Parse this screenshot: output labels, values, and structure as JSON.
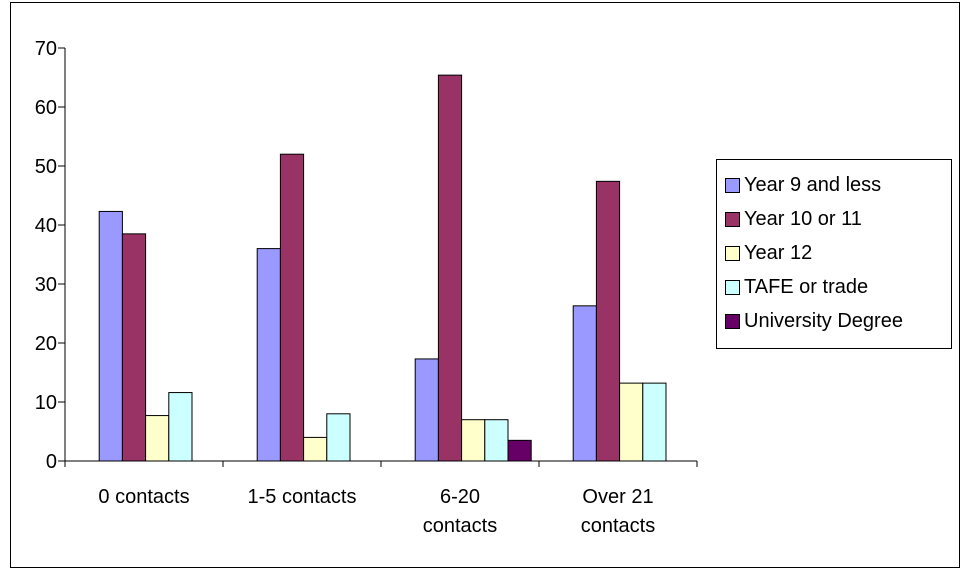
{
  "chart_data": {
    "type": "bar",
    "categories": [
      [
        "0 contacts"
      ],
      [
        "1-5 contacts"
      ],
      [
        "6-20",
        "contacts"
      ],
      [
        "Over 21",
        "contacts"
      ]
    ],
    "series": [
      {
        "name": "Year 9 and less",
        "color": "#9999FF",
        "values": [
          42.3,
          36.0,
          17.3,
          26.3
        ]
      },
      {
        "name": "Year 10 or 11",
        "color": "#993366",
        "values": [
          38.5,
          52.0,
          65.4,
          47.4
        ]
      },
      {
        "name": "Year 12",
        "color": "#FFFFCC",
        "values": [
          7.7,
          4.0,
          7.0,
          13.2
        ]
      },
      {
        "name": "TAFE or trade",
        "color": "#CCFFFF",
        "values": [
          11.6,
          8.0,
          7.0,
          13.2
        ]
      },
      {
        "name": "University Degree",
        "color": "#660066",
        "values": [
          0,
          0,
          3.5,
          0
        ]
      }
    ],
    "yticks": [
      "0",
      "10",
      "20",
      "30",
      "40",
      "50",
      "60",
      "70"
    ],
    "ylim": [
      0,
      70
    ],
    "grid": false,
    "legend_position": "right"
  }
}
